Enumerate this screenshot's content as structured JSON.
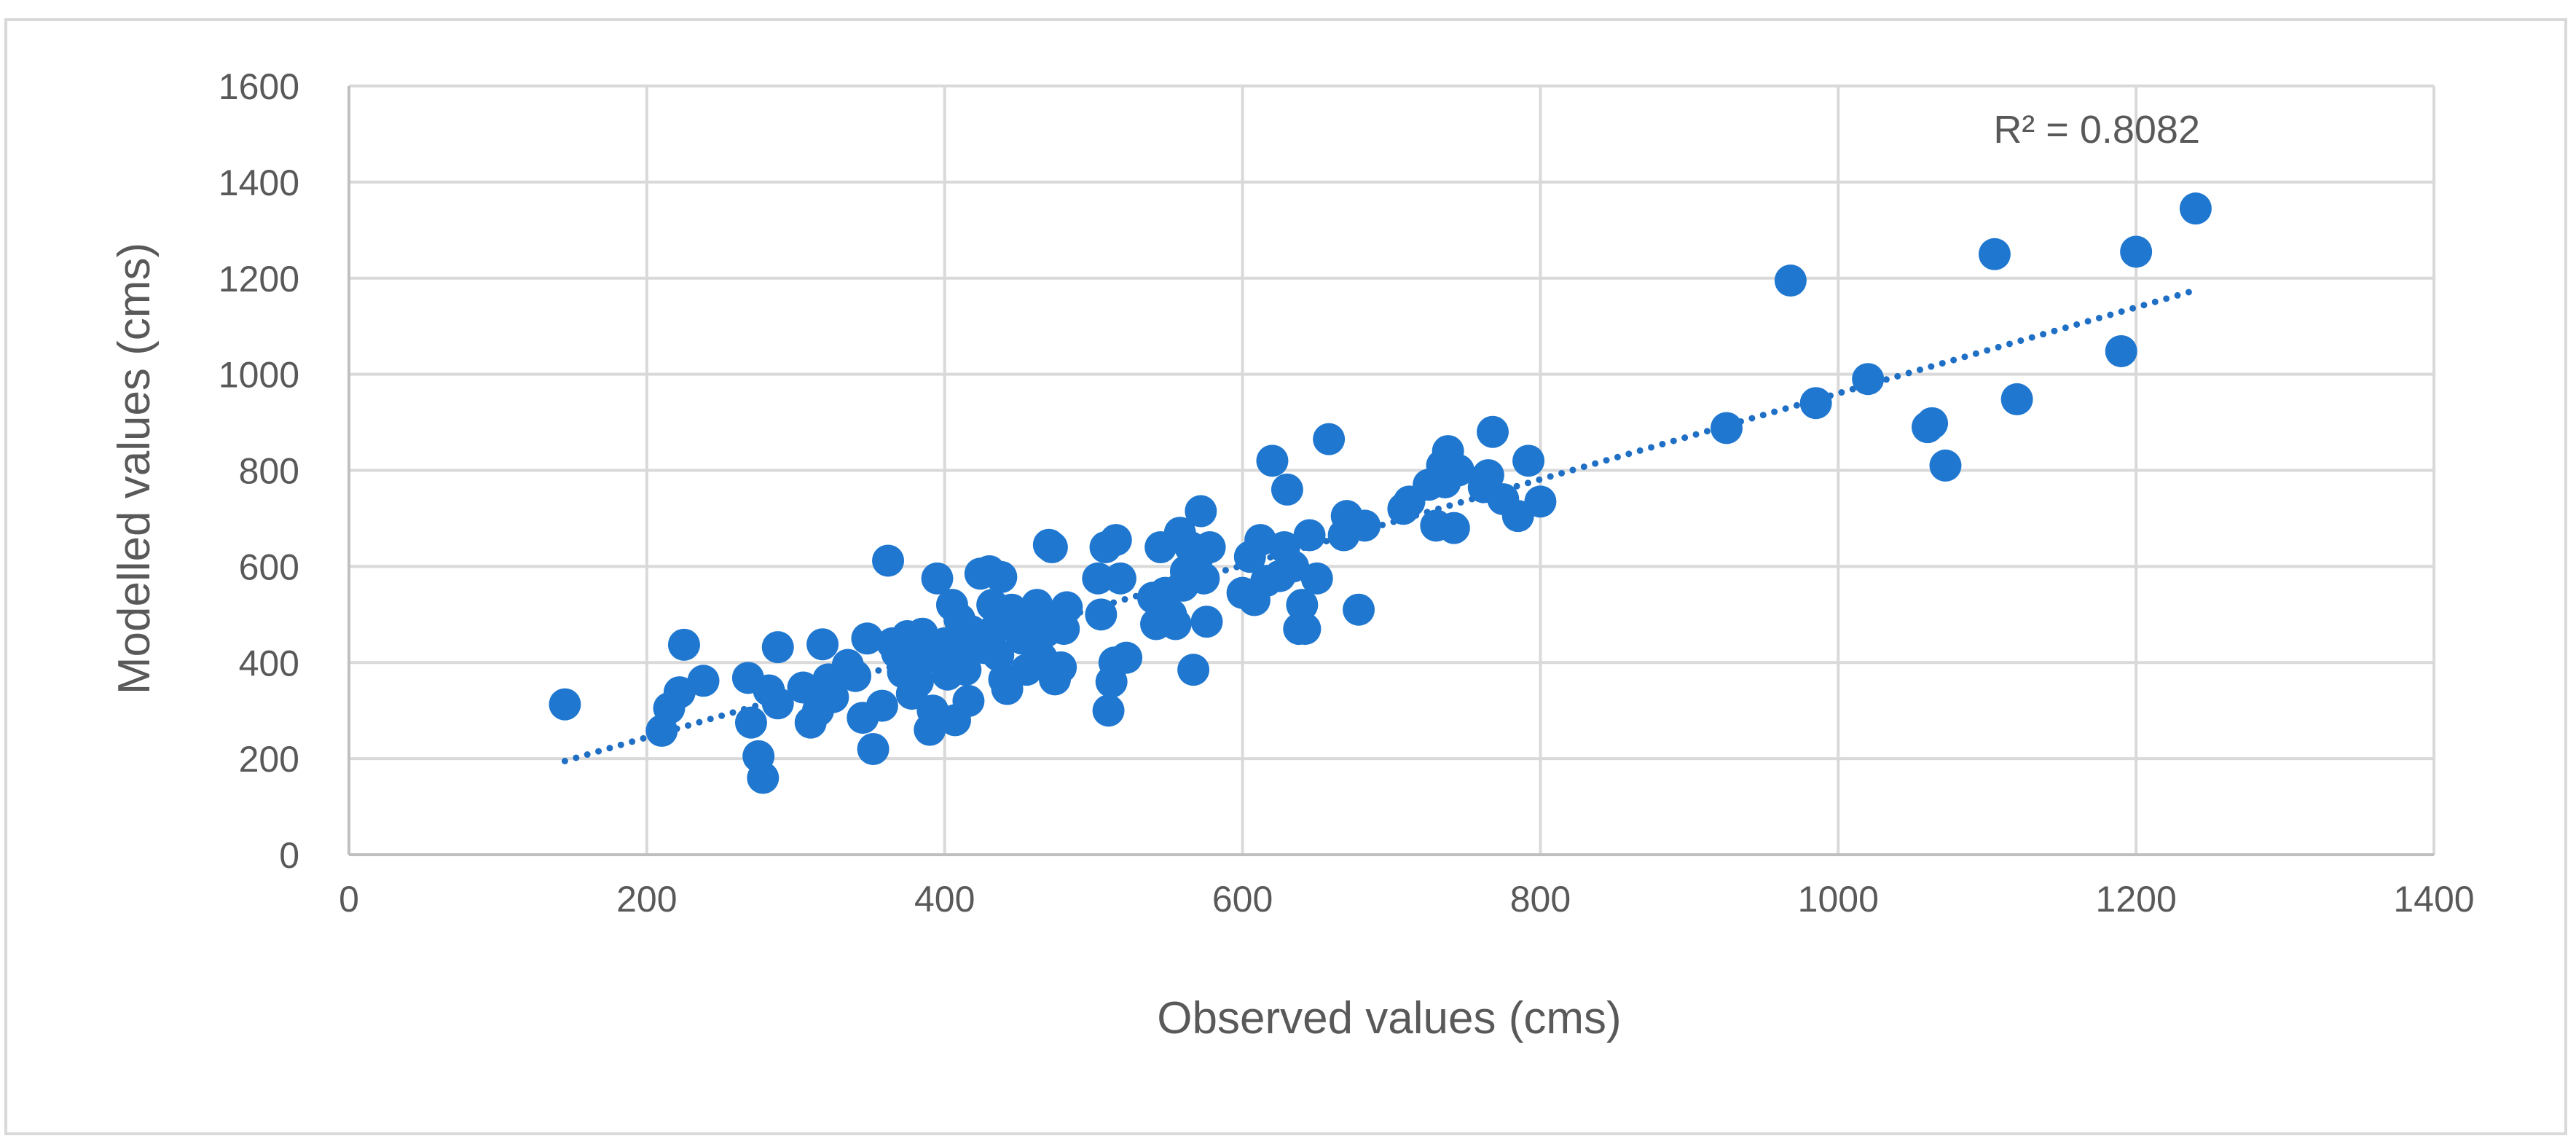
{
  "chart_data": {
    "type": "scatter",
    "title": "",
    "xlabel": "Observed values (cms)",
    "ylabel": "Modelled values (cms)",
    "xlim": [
      0,
      1400
    ],
    "ylim": [
      0,
      1600
    ],
    "x_ticks": [
      0,
      200,
      400,
      600,
      800,
      1000,
      1200,
      1400
    ],
    "y_ticks": [
      0,
      200,
      400,
      600,
      800,
      1000,
      1200,
      1400,
      1600
    ],
    "grid": true,
    "legend": "none",
    "marker_color": "#1f77d0",
    "trendline": {
      "type": "linear",
      "style": "dotted",
      "color": "#1f6fc4",
      "x_range": [
        145,
        1240
      ],
      "y_range": [
        195,
        1175
      ],
      "r_squared_label": "R² = 0.8082"
    },
    "points": [
      [
        145,
        313
      ],
      [
        210,
        258
      ],
      [
        215,
        305
      ],
      [
        222,
        338
      ],
      [
        225,
        437
      ],
      [
        238,
        362
      ],
      [
        268,
        368
      ],
      [
        270,
        275
      ],
      [
        275,
        205
      ],
      [
        278,
        160
      ],
      [
        282,
        342
      ],
      [
        288,
        315
      ],
      [
        288,
        432
      ],
      [
        305,
        348
      ],
      [
        310,
        275
      ],
      [
        315,
        300
      ],
      [
        318,
        438
      ],
      [
        322,
        365
      ],
      [
        325,
        328
      ],
      [
        335,
        395
      ],
      [
        340,
        372
      ],
      [
        345,
        285
      ],
      [
        348,
        450
      ],
      [
        352,
        220
      ],
      [
        358,
        310
      ],
      [
        362,
        612
      ],
      [
        365,
        440
      ],
      [
        368,
        420
      ],
      [
        372,
        380
      ],
      [
        375,
        455
      ],
      [
        378,
        335
      ],
      [
        382,
        360
      ],
      [
        385,
        460
      ],
      [
        388,
        410
      ],
      [
        390,
        260
      ],
      [
        392,
        300
      ],
      [
        395,
        575
      ],
      [
        398,
        405
      ],
      [
        400,
        440
      ],
      [
        402,
        375
      ],
      [
        405,
        520
      ],
      [
        407,
        280
      ],
      [
        410,
        490
      ],
      [
        412,
        420
      ],
      [
        414,
        385
      ],
      [
        416,
        320
      ],
      [
        418,
        465
      ],
      [
        420,
        450
      ],
      [
        424,
        585
      ],
      [
        427,
        430
      ],
      [
        430,
        590
      ],
      [
        432,
        520
      ],
      [
        434,
        470
      ],
      [
        436,
        415
      ],
      [
        438,
        578
      ],
      [
        440,
        365
      ],
      [
        442,
        345
      ],
      [
        445,
        510
      ],
      [
        447,
        475
      ],
      [
        450,
        500
      ],
      [
        452,
        450
      ],
      [
        455,
        385
      ],
      [
        458,
        490
      ],
      [
        462,
        520
      ],
      [
        465,
        410
      ],
      [
        468,
        465
      ],
      [
        470,
        645
      ],
      [
        472,
        640
      ],
      [
        474,
        365
      ],
      [
        476,
        485
      ],
      [
        478,
        390
      ],
      [
        480,
        470
      ],
      [
        482,
        515
      ],
      [
        503,
        575
      ],
      [
        505,
        500
      ],
      [
        508,
        640
      ],
      [
        510,
        300
      ],
      [
        512,
        360
      ],
      [
        514,
        400
      ],
      [
        515,
        655
      ],
      [
        518,
        575
      ],
      [
        522,
        410
      ],
      [
        540,
        535
      ],
      [
        542,
        480
      ],
      [
        545,
        640
      ],
      [
        548,
        545
      ],
      [
        552,
        500
      ],
      [
        555,
        480
      ],
      [
        558,
        670
      ],
      [
        560,
        560
      ],
      [
        562,
        590
      ],
      [
        565,
        640
      ],
      [
        567,
        385
      ],
      [
        570,
        620
      ],
      [
        572,
        715
      ],
      [
        574,
        575
      ],
      [
        576,
        485
      ],
      [
        578,
        640
      ],
      [
        600,
        545
      ],
      [
        605,
        620
      ],
      [
        608,
        530
      ],
      [
        612,
        655
      ],
      [
        616,
        570
      ],
      [
        620,
        820
      ],
      [
        625,
        580
      ],
      [
        628,
        640
      ],
      [
        630,
        760
      ],
      [
        634,
        600
      ],
      [
        638,
        470
      ],
      [
        640,
        520
      ],
      [
        642,
        470
      ],
      [
        645,
        665
      ],
      [
        650,
        575
      ],
      [
        658,
        865
      ],
      [
        668,
        665
      ],
      [
        670,
        705
      ],
      [
        678,
        510
      ],
      [
        682,
        685
      ],
      [
        708,
        720
      ],
      [
        712,
        735
      ],
      [
        725,
        770
      ],
      [
        730,
        685
      ],
      [
        734,
        810
      ],
      [
        736,
        775
      ],
      [
        738,
        840
      ],
      [
        742,
        680
      ],
      [
        745,
        800
      ],
      [
        762,
        765
      ],
      [
        765,
        790
      ],
      [
        768,
        880
      ],
      [
        775,
        740
      ],
      [
        785,
        705
      ],
      [
        792,
        820
      ],
      [
        800,
        735
      ],
      [
        925,
        888
      ],
      [
        968,
        1195
      ],
      [
        985,
        940
      ],
      [
        1020,
        990
      ],
      [
        1060,
        890
      ],
      [
        1063,
        898
      ],
      [
        1072,
        810
      ],
      [
        1105,
        1250
      ],
      [
        1120,
        948
      ],
      [
        1190,
        1048
      ],
      [
        1200,
        1255
      ],
      [
        1240,
        1345
      ]
    ]
  }
}
